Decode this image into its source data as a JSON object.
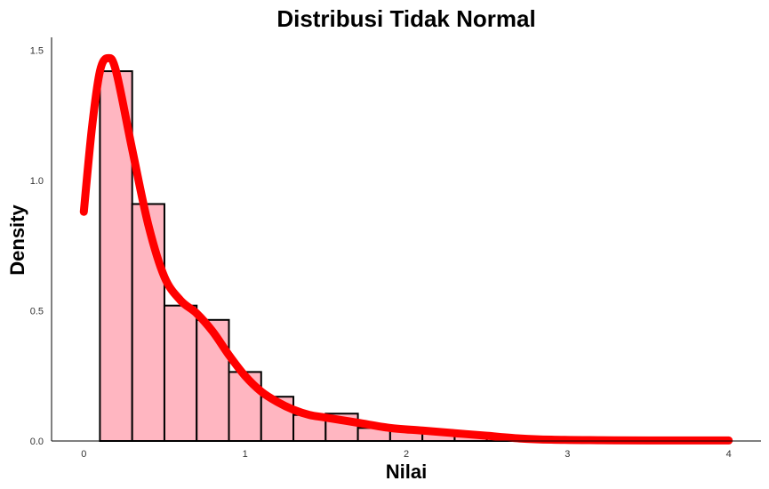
{
  "chart_data": {
    "type": "bar",
    "title": "Distribusi Tidak Normal",
    "xlabel": "Nilai",
    "ylabel": "Density",
    "xlim": [
      -0.2,
      4.2
    ],
    "ylim": [
      0,
      1.55
    ],
    "x_ticks": [
      0,
      1,
      2,
      3,
      4
    ],
    "y_ticks": [
      0.0,
      0.5,
      1.0,
      1.5
    ],
    "x_tick_labels": [
      "0",
      "1",
      "2",
      "3",
      "4"
    ],
    "y_tick_labels": [
      "0.0",
      "0.5",
      "1.0",
      "1.5"
    ],
    "grid": false,
    "histogram": {
      "bin_width": 0.2,
      "fill": "#FFB6C1",
      "stroke": "#000000",
      "bins": [
        {
          "x0": 0.1,
          "x1": 0.3,
          "density": 1.42
        },
        {
          "x0": 0.3,
          "x1": 0.5,
          "density": 0.91
        },
        {
          "x0": 0.5,
          "x1": 0.7,
          "density": 0.52
        },
        {
          "x0": 0.7,
          "x1": 0.9,
          "density": 0.465
        },
        {
          "x0": 0.9,
          "x1": 1.1,
          "density": 0.265
        },
        {
          "x0": 1.1,
          "x1": 1.3,
          "density": 0.17
        },
        {
          "x0": 1.3,
          "x1": 1.5,
          "density": 0.1
        },
        {
          "x0": 1.5,
          "x1": 1.7,
          "density": 0.105
        },
        {
          "x0": 1.7,
          "x1": 1.9,
          "density": 0.05
        },
        {
          "x0": 1.9,
          "x1": 2.1,
          "density": 0.05
        },
        {
          "x0": 2.1,
          "x1": 2.3,
          "density": 0.03
        },
        {
          "x0": 2.3,
          "x1": 2.5,
          "density": 0.02
        },
        {
          "x0": 2.5,
          "x1": 2.7,
          "density": 0.01
        },
        {
          "x0": 2.7,
          "x1": 2.9,
          "density": 0.005
        },
        {
          "x0": 2.9,
          "x1": 3.1,
          "density": 0.005
        },
        {
          "x0": 3.1,
          "x1": 3.3,
          "density": 0.0
        },
        {
          "x0": 3.3,
          "x1": 3.5,
          "density": 0.0
        },
        {
          "x0": 3.5,
          "x1": 3.7,
          "density": 0.0
        },
        {
          "x0": 3.7,
          "x1": 3.9,
          "density": 0.0
        }
      ]
    },
    "density_curve": {
      "color": "#FF0000",
      "x": [
        0.0,
        0.05,
        0.1,
        0.15,
        0.2,
        0.3,
        0.4,
        0.5,
        0.6,
        0.7,
        0.8,
        0.9,
        1.0,
        1.1,
        1.2,
        1.3,
        1.4,
        1.5,
        1.7,
        1.9,
        2.1,
        2.3,
        2.5,
        2.7,
        2.9,
        3.2,
        3.5,
        4.0
      ],
      "y": [
        0.88,
        1.2,
        1.42,
        1.47,
        1.42,
        1.12,
        0.83,
        0.63,
        0.54,
        0.49,
        0.42,
        0.33,
        0.25,
        0.19,
        0.15,
        0.12,
        0.1,
        0.09,
        0.07,
        0.05,
        0.04,
        0.03,
        0.02,
        0.01,
        0.005,
        0.003,
        0.002,
        0.002
      ]
    }
  }
}
